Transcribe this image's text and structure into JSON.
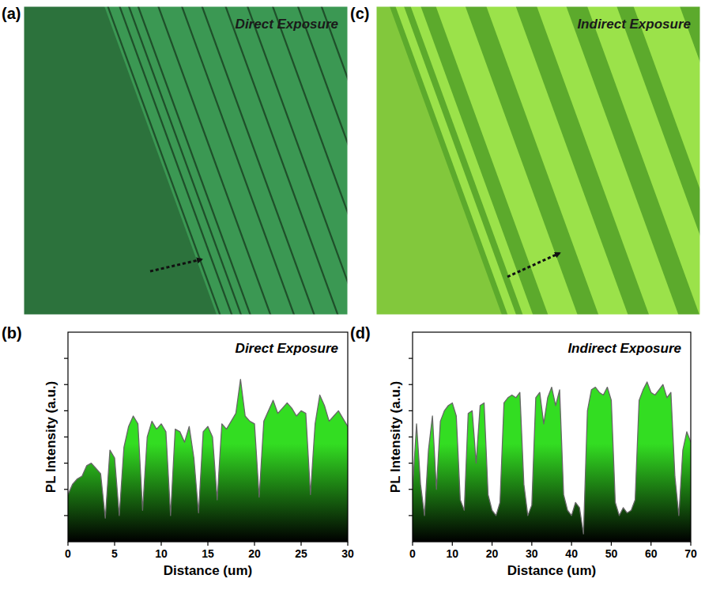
{
  "figure": {
    "panels": [
      {
        "letter": "(a)",
        "label": "Direct Exposure"
      },
      {
        "letter": "(b)"
      },
      {
        "letter": "(c)",
        "label": "Indirect Exposure"
      },
      {
        "letter": "(d)"
      }
    ]
  },
  "chart_data": [
    {
      "type": "area",
      "title": "Direct Exposure",
      "x_label": "Distance (um)",
      "y_label": "PL Intensity (a.u.)",
      "x": [
        0,
        0.5,
        1,
        1.5,
        2,
        2.5,
        3,
        3.5,
        4,
        4.5,
        5,
        5.5,
        6,
        6.5,
        7,
        7.5,
        8,
        8.5,
        9,
        9.5,
        10,
        10.5,
        11,
        11.5,
        12,
        12.5,
        13,
        13.5,
        14,
        14.5,
        15,
        15.5,
        16,
        16.5,
        17,
        17.5,
        18,
        18.5,
        19,
        19.5,
        20,
        20.5,
        21,
        21.5,
        22,
        22.5,
        23,
        23.5,
        24,
        24.5,
        25,
        25.5,
        26,
        26.5,
        27,
        27.5,
        28,
        28.5,
        29,
        29.5,
        30
      ],
      "values": [
        1.8,
        2.2,
        2.4,
        2.5,
        2.9,
        3.0,
        2.8,
        2.6,
        0.9,
        3.5,
        3.2,
        1.0,
        3.6,
        4.4,
        4.8,
        4.5,
        1.2,
        4.0,
        4.6,
        4.3,
        4.5,
        4.2,
        1.0,
        4.3,
        4.2,
        3.8,
        4.4,
        3.2,
        1.1,
        4.2,
        4.4,
        4.0,
        1.6,
        4.5,
        4.3,
        4.6,
        4.9,
        6.2,
        4.8,
        4.6,
        4.5,
        1.7,
        4.6,
        5.0,
        5.4,
        4.9,
        5.1,
        5.3,
        5.1,
        4.8,
        5.0,
        4.9,
        1.8,
        4.5,
        5.6,
        5.2,
        4.6,
        4.8,
        5.0,
        4.7,
        4.4
      ],
      "xlim": [
        0,
        30
      ],
      "ylim": [
        0,
        8
      ],
      "xticks": [
        0,
        5,
        10,
        15,
        20,
        25,
        30
      ],
      "yticks": [
        1,
        2,
        3,
        4,
        5,
        6,
        7
      ],
      "tick_labels": "x",
      "color": "#33dd22"
    },
    {
      "type": "area",
      "title": "Indirect Exposure",
      "x_label": "Distance (um)",
      "y_label": "PL Intensity (a.u.)",
      "x": [
        0,
        1,
        2,
        3,
        4,
        5,
        6,
        7,
        8,
        9,
        10,
        11,
        12,
        13,
        14,
        15,
        16,
        17,
        18,
        19,
        20,
        21,
        22,
        23,
        24,
        25,
        26,
        27,
        28,
        29,
        30,
        31,
        32,
        33,
        34,
        35,
        36,
        37,
        38,
        39,
        40,
        41,
        42,
        43,
        44,
        45,
        46,
        47,
        48,
        49,
        50,
        51,
        52,
        53,
        54,
        55,
        56,
        57,
        58,
        59,
        60,
        61,
        62,
        63,
        64,
        65,
        66,
        67,
        68,
        69,
        70
      ],
      "values": [
        2.0,
        4.5,
        2.2,
        1.0,
        3.5,
        4.8,
        2.0,
        4.6,
        5.0,
        5.2,
        5.3,
        4.8,
        1.6,
        1.2,
        4.9,
        5.0,
        3.0,
        5.2,
        5.3,
        1.8,
        1.2,
        1.0,
        1.5,
        5.3,
        5.5,
        5.6,
        5.5,
        5.7,
        2.2,
        1.0,
        1.4,
        5.5,
        5.7,
        4.5,
        5.5,
        5.9,
        5.2,
        5.8,
        1.8,
        1.2,
        1.0,
        1.5,
        1.3,
        0.3,
        5.0,
        5.8,
        5.9,
        5.7,
        5.6,
        5.9,
        5.4,
        1.5,
        1.0,
        1.3,
        1.1,
        1.2,
        1.6,
        5.4,
        5.8,
        6.1,
        5.7,
        5.6,
        5.8,
        6.0,
        5.5,
        5.7,
        2.5,
        1.0,
        3.5,
        4.2,
        3.8
      ],
      "xlim": [
        0,
        70
      ],
      "ylim": [
        0,
        8
      ],
      "xticks": [
        0,
        10,
        20,
        30,
        40,
        50,
        60,
        70
      ],
      "yticks": [
        1,
        2,
        3,
        4,
        5,
        6,
        7
      ],
      "tick_labels": "x",
      "color": "#33dd22"
    }
  ]
}
